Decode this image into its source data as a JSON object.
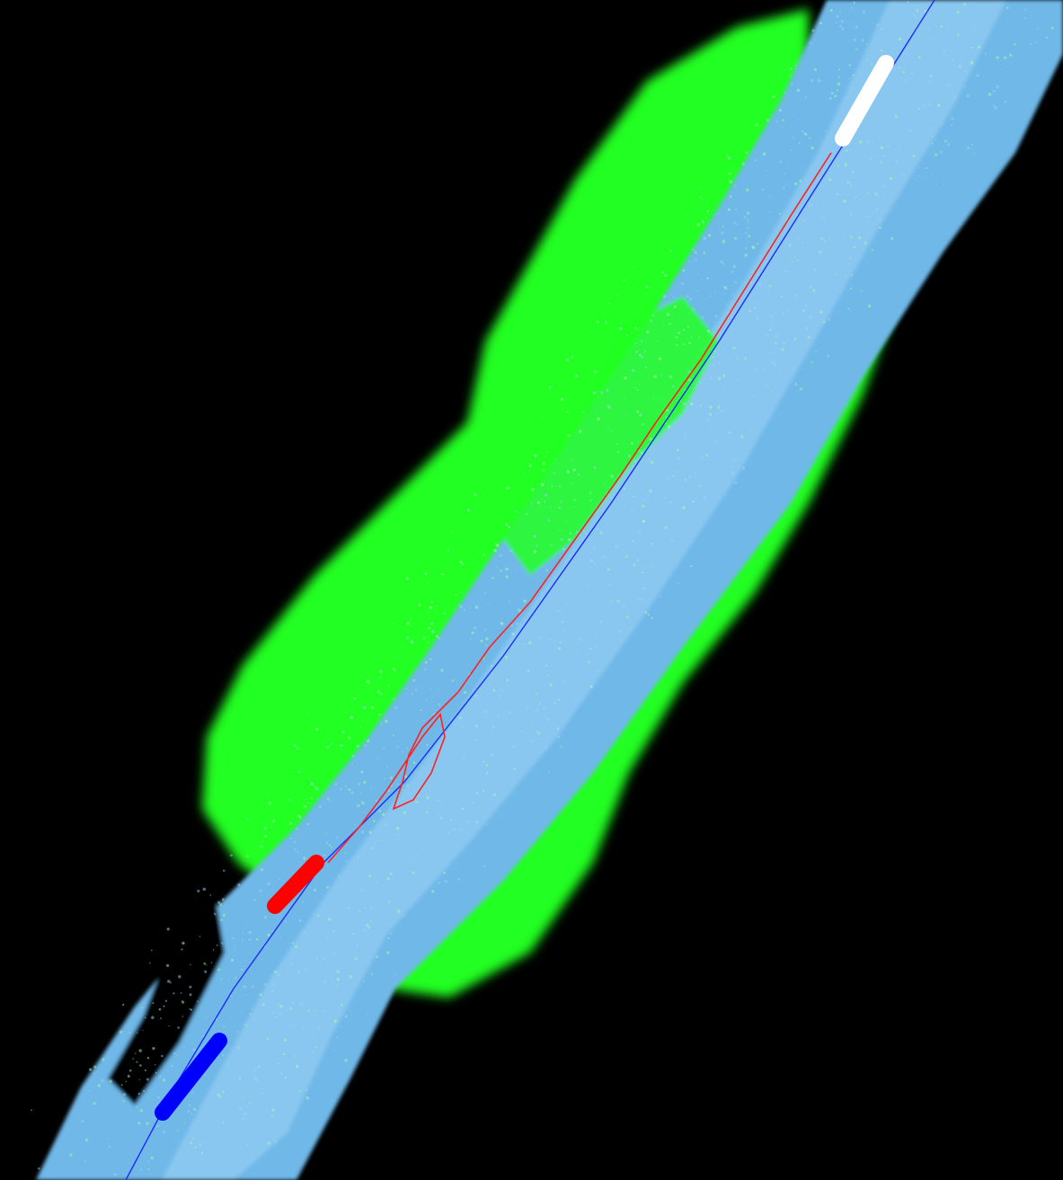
{
  "scene": {
    "background_color": "#000000",
    "colors": {
      "ground": "#6fb8e8",
      "ground_light": "#9fd4f5",
      "vegetation": "#22ff22",
      "vegetation_light": "#a8ffa8",
      "path_estimated": "#ff2020",
      "path_reference": "#1a2bff",
      "marker_start": "#0000ff",
      "marker_current": "#ff0000",
      "marker_end": "#ffffff"
    },
    "markers": [
      {
        "name": "start-marker",
        "color": "#0000ff"
      },
      {
        "name": "current-marker",
        "color": "#ff0000"
      },
      {
        "name": "end-marker",
        "color": "#ffffff"
      }
    ]
  }
}
